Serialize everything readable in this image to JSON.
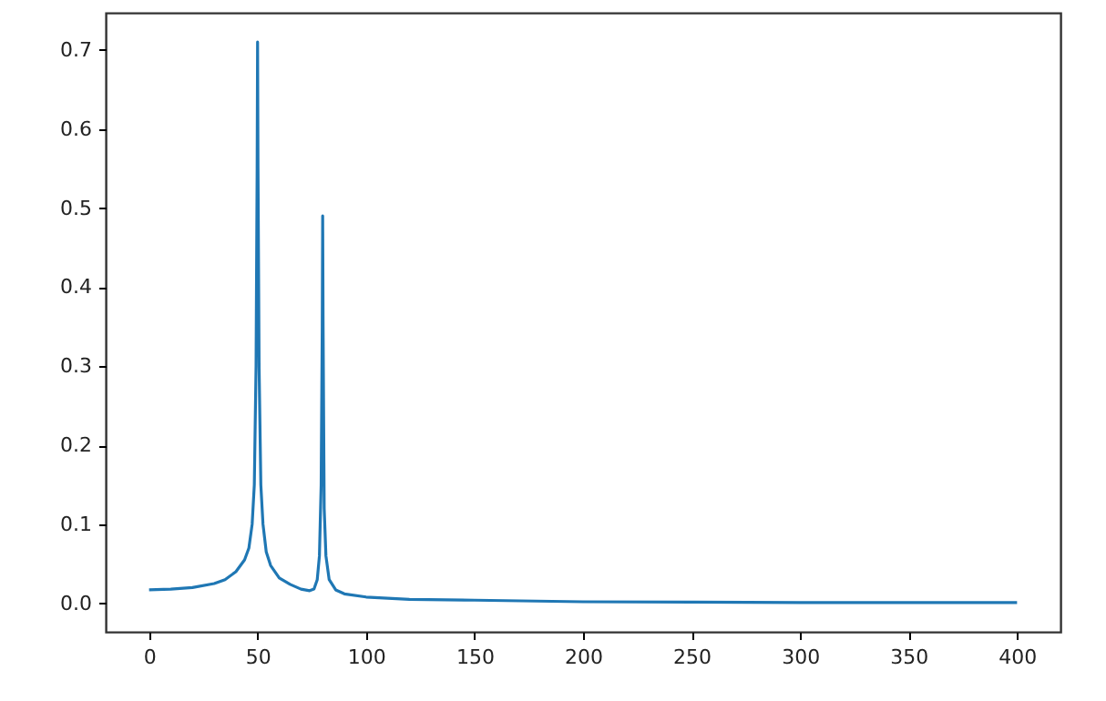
{
  "chart_data": {
    "type": "line",
    "x": [
      0,
      10,
      20,
      30,
      35,
      40,
      44,
      46,
      47.5,
      48.5,
      49.3,
      49.8,
      50,
      50.2,
      50.7,
      51.5,
      52.5,
      54,
      56,
      60,
      65,
      70,
      74,
      76,
      77.5,
      78.5,
      79.3,
      79.8,
      80,
      80.2,
      80.7,
      81.5,
      83,
      86,
      90,
      100,
      120,
      150,
      200,
      250,
      300,
      350,
      400
    ],
    "series": [
      {
        "color": "#1f77b4",
        "values": [
          0.017,
          0.018,
          0.02,
          0.025,
          0.03,
          0.04,
          0.055,
          0.07,
          0.1,
          0.15,
          0.3,
          0.55,
          0.71,
          0.55,
          0.3,
          0.15,
          0.1,
          0.065,
          0.048,
          0.032,
          0.024,
          0.018,
          0.016,
          0.018,
          0.03,
          0.06,
          0.15,
          0.35,
          0.49,
          0.35,
          0.12,
          0.06,
          0.03,
          0.017,
          0.012,
          0.008,
          0.005,
          0.004,
          0.002,
          0.0015,
          0.001,
          0.001,
          0.001
        ]
      }
    ],
    "xlim": [
      -20,
      420
    ],
    "xticks": [
      0,
      50,
      100,
      150,
      200,
      250,
      300,
      350,
      400
    ],
    "ylim": [
      -0.036,
      0.747
    ],
    "yticks": [
      {
        "value": 0,
        "label": "0.0"
      },
      0.1,
      0.2,
      0.3,
      0.4,
      0.5,
      0.6,
      0.7
    ],
    "line_style": "solid"
  }
}
